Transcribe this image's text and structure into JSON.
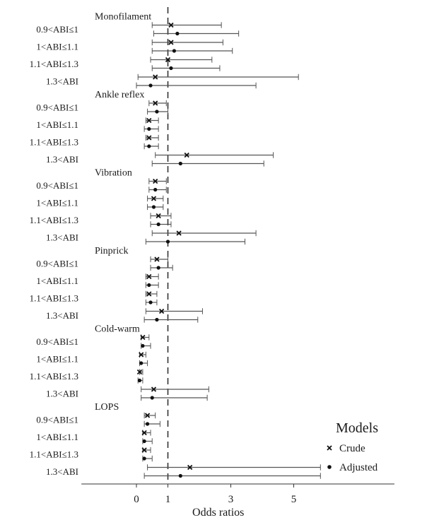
{
  "chart_data": {
    "type": "forest",
    "xlabel": "Odds ratios",
    "x_ticks": [
      0,
      1,
      3,
      5
    ],
    "xlim": [
      -1.75,
      8.2
    ],
    "reference_line": 1,
    "legend": {
      "title": "Models",
      "position": "bottom-right",
      "entries": [
        {
          "name": "Crude",
          "marker": "x"
        },
        {
          "name": "Adjusted",
          "marker": "dot"
        }
      ]
    },
    "groups": [
      {
        "name": "Monofilament",
        "rows": [
          {
            "label": "0.9<ABI≤1",
            "crude": {
              "est": 1.1,
              "lo": 0.5,
              "hi": 2.7
            },
            "adjusted": {
              "est": 1.3,
              "lo": 0.55,
              "hi": 3.25
            }
          },
          {
            "label": "1<ABI≤1.1",
            "crude": {
              "est": 1.1,
              "lo": 0.5,
              "hi": 2.75
            },
            "adjusted": {
              "est": 1.2,
              "lo": 0.5,
              "hi": 3.05
            }
          },
          {
            "label": "1.1<ABI≤1.3",
            "crude": {
              "est": 1.0,
              "lo": 0.45,
              "hi": 2.4
            },
            "adjusted": {
              "est": 1.1,
              "lo": 0.5,
              "hi": 2.65
            }
          },
          {
            "label": "1.3<ABI",
            "crude": {
              "est": 0.6,
              "lo": 0.05,
              "hi": 5.15
            },
            "adjusted": {
              "est": 0.45,
              "lo": 0.0,
              "hi": 3.8
            }
          }
        ]
      },
      {
        "name": "Ankle reflex",
        "rows": [
          {
            "label": "0.9<ABI≤1",
            "crude": {
              "est": 0.6,
              "lo": 0.4,
              "hi": 0.95
            },
            "adjusted": {
              "est": 0.65,
              "lo": 0.35,
              "hi": 1.0
            }
          },
          {
            "label": "1<ABI≤1.1",
            "crude": {
              "est": 0.4,
              "lo": 0.3,
              "hi": 0.7
            },
            "adjusted": {
              "est": 0.4,
              "lo": 0.25,
              "hi": 0.7
            }
          },
          {
            "label": "1.1<ABI≤1.3",
            "crude": {
              "est": 0.4,
              "lo": 0.3,
              "hi": 0.7
            },
            "adjusted": {
              "est": 0.4,
              "lo": 0.25,
              "hi": 0.7
            }
          },
          {
            "label": "1.3<ABI",
            "crude": {
              "est": 1.6,
              "lo": 0.6,
              "hi": 4.35
            },
            "adjusted": {
              "est": 1.4,
              "lo": 0.5,
              "hi": 4.05
            }
          }
        ]
      },
      {
        "name": "Vibration",
        "rows": [
          {
            "label": "0.9<ABI≤1",
            "crude": {
              "est": 0.6,
              "lo": 0.4,
              "hi": 0.95
            },
            "adjusted": {
              "est": 0.6,
              "lo": 0.4,
              "hi": 0.95
            }
          },
          {
            "label": "1<ABI≤1.1",
            "crude": {
              "est": 0.55,
              "lo": 0.35,
              "hi": 0.85
            },
            "adjusted": {
              "est": 0.55,
              "lo": 0.35,
              "hi": 0.85
            }
          },
          {
            "label": "1.1<ABI≤1.3",
            "crude": {
              "est": 0.7,
              "lo": 0.45,
              "hi": 1.1
            },
            "adjusted": {
              "est": 0.7,
              "lo": 0.45,
              "hi": 1.1
            }
          },
          {
            "label": "1.3<ABI",
            "crude": {
              "est": 1.35,
              "lo": 0.5,
              "hi": 3.8
            },
            "adjusted": {
              "est": 1.0,
              "lo": 0.3,
              "hi": 3.45
            }
          }
        ]
      },
      {
        "name": "Pinprick",
        "rows": [
          {
            "label": "0.9<ABI≤1",
            "crude": {
              "est": 0.65,
              "lo": 0.45,
              "hi": 1.0
            },
            "adjusted": {
              "est": 0.7,
              "lo": 0.45,
              "hi": 1.15
            }
          },
          {
            "label": "1<ABI≤1.1",
            "crude": {
              "est": 0.4,
              "lo": 0.3,
              "hi": 0.7
            },
            "adjusted": {
              "est": 0.4,
              "lo": 0.3,
              "hi": 0.7
            }
          },
          {
            "label": "1.1<ABI≤1.3",
            "crude": {
              "est": 0.4,
              "lo": 0.3,
              "hi": 0.65
            },
            "adjusted": {
              "est": 0.45,
              "lo": 0.3,
              "hi": 0.65
            }
          },
          {
            "label": "1.3<ABI",
            "crude": {
              "est": 0.8,
              "lo": 0.3,
              "hi": 2.1
            },
            "adjusted": {
              "est": 0.65,
              "lo": 0.25,
              "hi": 1.95
            }
          }
        ]
      },
      {
        "name": "Cold-warm",
        "rows": [
          {
            "label": "0.9<ABI≤1",
            "crude": {
              "est": 0.2,
              "lo": 0.15,
              "hi": 0.4
            },
            "adjusted": {
              "est": 0.2,
              "lo": 0.15,
              "hi": 0.45
            }
          },
          {
            "label": "1<ABI≤1.1",
            "crude": {
              "est": 0.15,
              "lo": 0.1,
              "hi": 0.3
            },
            "adjusted": {
              "est": 0.15,
              "lo": 0.1,
              "hi": 0.35
            }
          },
          {
            "label": "1.1<ABI≤1.3",
            "crude": {
              "est": 0.1,
              "lo": 0.1,
              "hi": 0.2
            },
            "adjusted": {
              "est": 0.1,
              "lo": 0.05,
              "hi": 0.2
            }
          },
          {
            "label": "1.3<ABI",
            "crude": {
              "est": 0.55,
              "lo": 0.15,
              "hi": 2.3
            },
            "adjusted": {
              "est": 0.5,
              "lo": 0.15,
              "hi": 2.25
            }
          }
        ]
      },
      {
        "name": "LOPS",
        "rows": [
          {
            "label": "0.9<ABI≤1",
            "crude": {
              "est": 0.35,
              "lo": 0.25,
              "hi": 0.6
            },
            "adjusted": {
              "est": 0.35,
              "lo": 0.25,
              "hi": 0.75
            }
          },
          {
            "label": "1<ABI≤1.1",
            "crude": {
              "est": 0.25,
              "lo": 0.2,
              "hi": 0.45
            },
            "adjusted": {
              "est": 0.25,
              "lo": 0.2,
              "hi": 0.5
            }
          },
          {
            "label": "1.1<ABI≤1.3",
            "crude": {
              "est": 0.25,
              "lo": 0.2,
              "hi": 0.45
            },
            "adjusted": {
              "est": 0.25,
              "lo": 0.2,
              "hi": 0.5
            }
          },
          {
            "label": "1.3<ABI",
            "crude": {
              "est": 1.7,
              "lo": 0.35,
              "hi": 5.85
            },
            "adjusted": {
              "est": 1.4,
              "lo": 0.25,
              "hi": 5.85
            }
          }
        ]
      }
    ]
  }
}
